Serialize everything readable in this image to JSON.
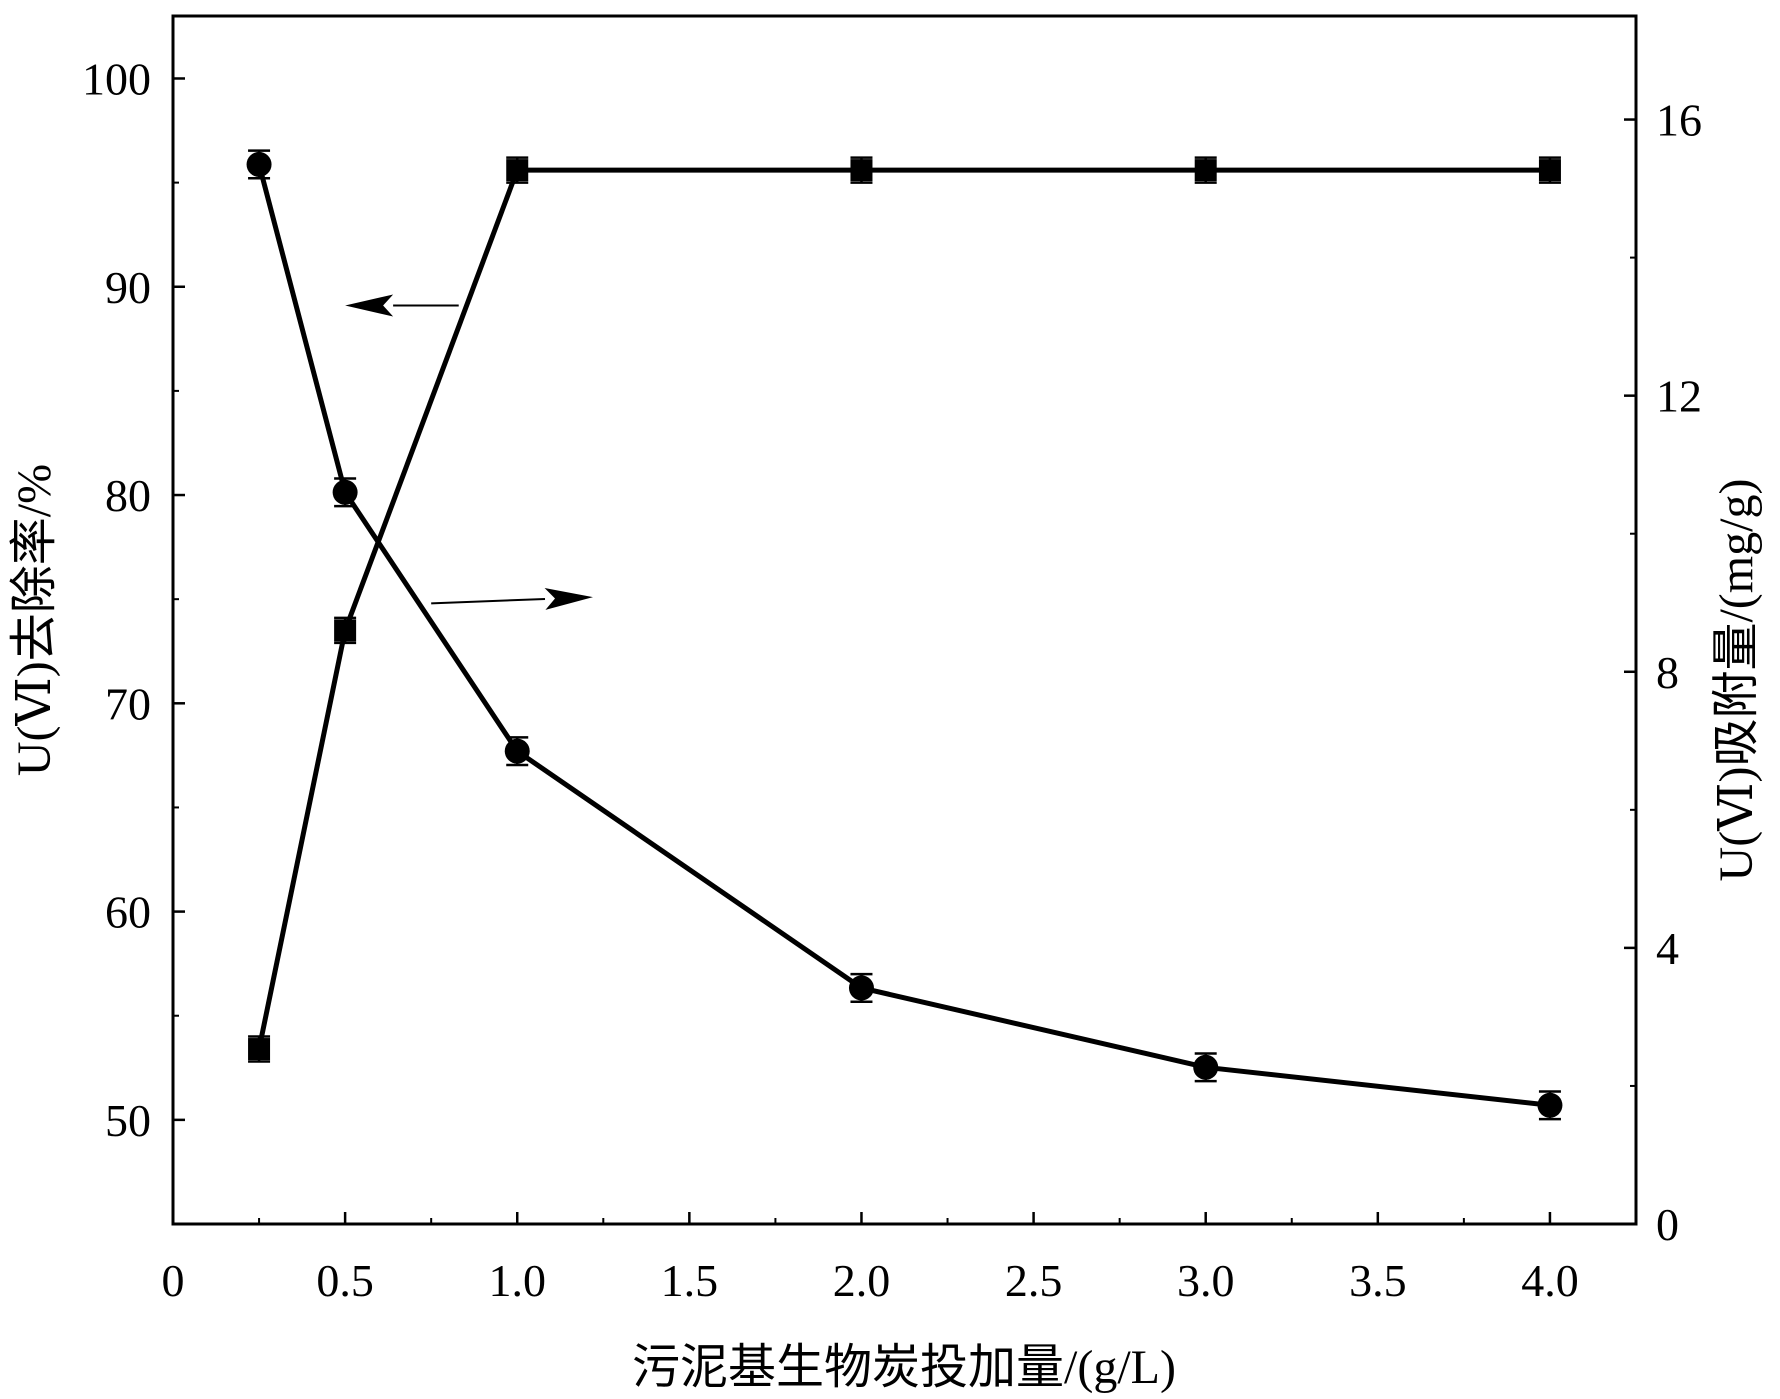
{
  "chart_data": {
    "type": "line",
    "xlabel": "污泥基生物炭投加量/(g/L)",
    "ylabel_left": "U(Ⅵ)去除率/%",
    "ylabel_right": "U(Ⅵ)吸附量/(mg/g)",
    "xlim": [
      0,
      4.25
    ],
    "ylim_left": [
      45,
      103
    ],
    "ylim_right": [
      0,
      17.5
    ],
    "x_ticks": [
      {
        "value": 0,
        "label": "0"
      },
      {
        "value": 0.5,
        "label": "0.5"
      },
      {
        "value": 1.0,
        "label": "1.0"
      },
      {
        "value": 1.5,
        "label": "1.5"
      },
      {
        "value": 2.0,
        "label": "2.0"
      },
      {
        "value": 2.5,
        "label": "2.5"
      },
      {
        "value": 3.0,
        "label": "3.0"
      },
      {
        "value": 3.5,
        "label": "3.5"
      },
      {
        "value": 4.0,
        "label": "4.0"
      }
    ],
    "y_left_ticks": [
      {
        "value": 50,
        "label": "50"
      },
      {
        "value": 60,
        "label": "60"
      },
      {
        "value": 70,
        "label": "70"
      },
      {
        "value": 80,
        "label": "80"
      },
      {
        "value": 90,
        "label": "90"
      },
      {
        "value": 100,
        "label": "100"
      }
    ],
    "y_right_ticks": [
      {
        "value": 0,
        "label": "0"
      },
      {
        "value": 4,
        "label": "4"
      },
      {
        "value": 8,
        "label": "8"
      },
      {
        "value": 12,
        "label": "12"
      },
      {
        "value": 16,
        "label": "16"
      }
    ],
    "series": [
      {
        "axis": "left",
        "marker": "square",
        "x": [
          0.25,
          0.5,
          1.0,
          2.0,
          3.0,
          4.0
        ],
        "y": [
          53.4,
          73.5,
          95.6,
          95.6,
          95.6,
          95.6
        ],
        "err": [
          0.6,
          0.6,
          0.6,
          0.6,
          0.6,
          0.6
        ],
        "color": "#000000"
      },
      {
        "axis": "right",
        "marker": "circle",
        "x": [
          0.25,
          0.5,
          1.0,
          2.0,
          3.0,
          4.0
        ],
        "y": [
          15.35,
          10.6,
          6.85,
          3.42,
          2.27,
          1.72
        ],
        "err": [
          0.2,
          0.2,
          0.2,
          0.2,
          0.2,
          0.2
        ],
        "color": "#000000"
      }
    ],
    "annotations": [
      {
        "type": "arrow",
        "direction": "left",
        "points_to_axis": "left",
        "from": {
          "x": 0.83,
          "y": 89.1
        },
        "to": {
          "x": 0.5,
          "y": 89.1
        }
      },
      {
        "type": "arrow",
        "direction": "right",
        "points_to_axis": "right",
        "from": {
          "x": 0.75,
          "y": 74.8
        },
        "to": {
          "x": 1.22,
          "y": 75.1
        }
      }
    ]
  }
}
